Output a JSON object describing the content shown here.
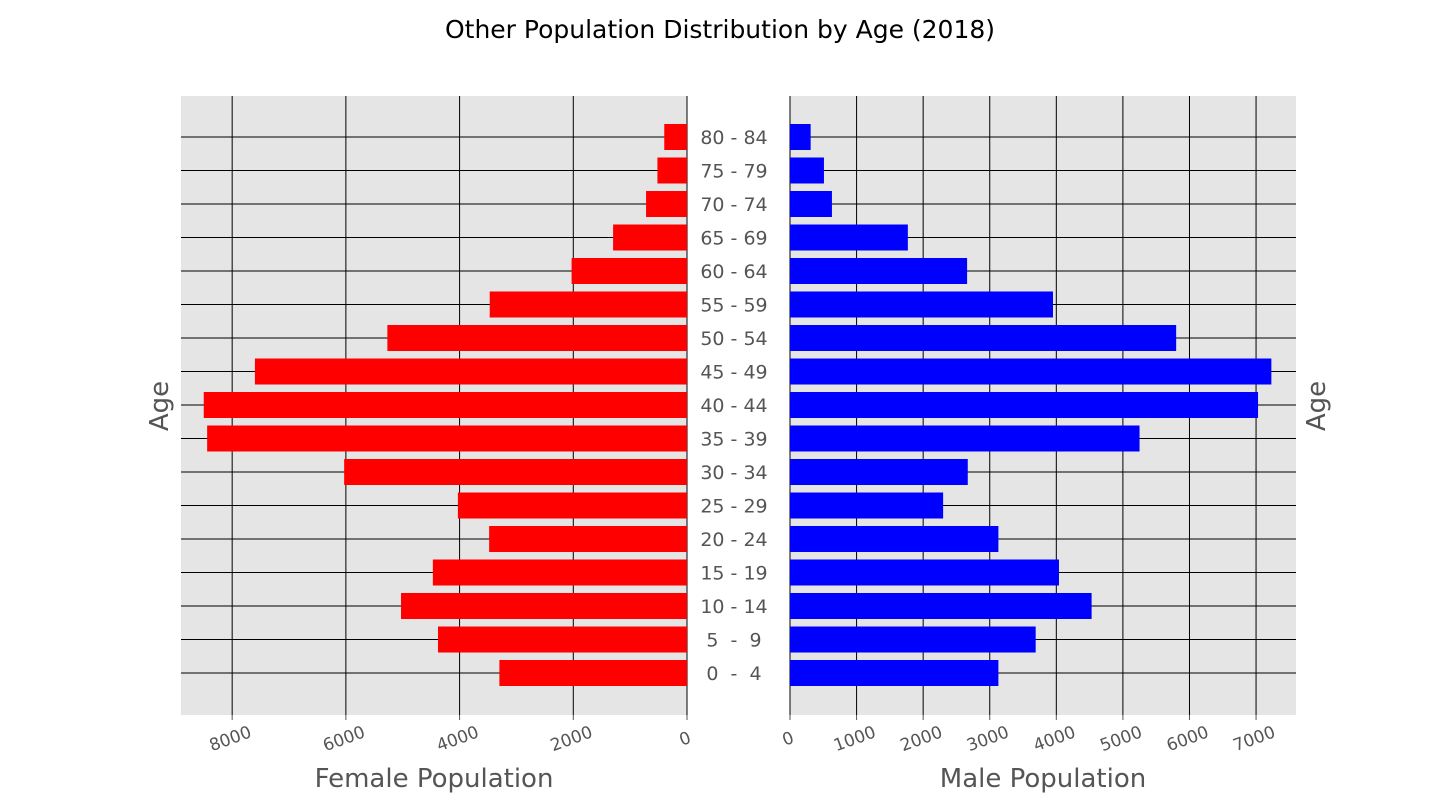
{
  "chart_data": {
    "type": "bar",
    "title": "Other Population Distribution by Age (2018)",
    "categories": [
      "0  -  4",
      "5  -  9",
      "10 - 14",
      "15 - 19",
      "20 - 24",
      "25 - 29",
      "30 - 34",
      "35 - 39",
      "40 - 44",
      "45 - 49",
      "50 - 54",
      "55 - 59",
      "60 - 64",
      "65 - 69",
      "70 - 74",
      "75 - 79",
      "80 - 84"
    ],
    "ylabel_left": "Age",
    "ylabel_right": "Age",
    "grid": true,
    "orientation": "horizontal",
    "panels": [
      {
        "name": "female",
        "xlabel": "Female Population",
        "color": "#ff0000",
        "xlim": [
          8900,
          0
        ],
        "inverted": true,
        "xticks": [
          8000,
          6000,
          4000,
          2000,
          0
        ],
        "xtick_labels": [
          "8000",
          "6000",
          "4000",
          "2000",
          "0"
        ],
        "values": [
          3300,
          4380,
          5030,
          4470,
          3480,
          4030,
          6030,
          8440,
          8500,
          7600,
          5270,
          3470,
          2030,
          1300,
          720,
          520,
          400
        ]
      },
      {
        "name": "male",
        "xlabel": "Male Population",
        "color": "#0000ff",
        "xlim": [
          0,
          7600
        ],
        "inverted": false,
        "xticks": [
          0,
          1000,
          2000,
          3000,
          4000,
          5000,
          6000,
          7000
        ],
        "xtick_labels": [
          "0",
          "1000",
          "2000",
          "3000",
          "4000",
          "5000",
          "6000",
          "7000"
        ],
        "values": [
          3130,
          3690,
          4530,
          4040,
          3130,
          2300,
          2670,
          5250,
          7030,
          7230,
          5800,
          3950,
          2660,
          1770,
          630,
          510,
          310
        ]
      }
    ]
  }
}
